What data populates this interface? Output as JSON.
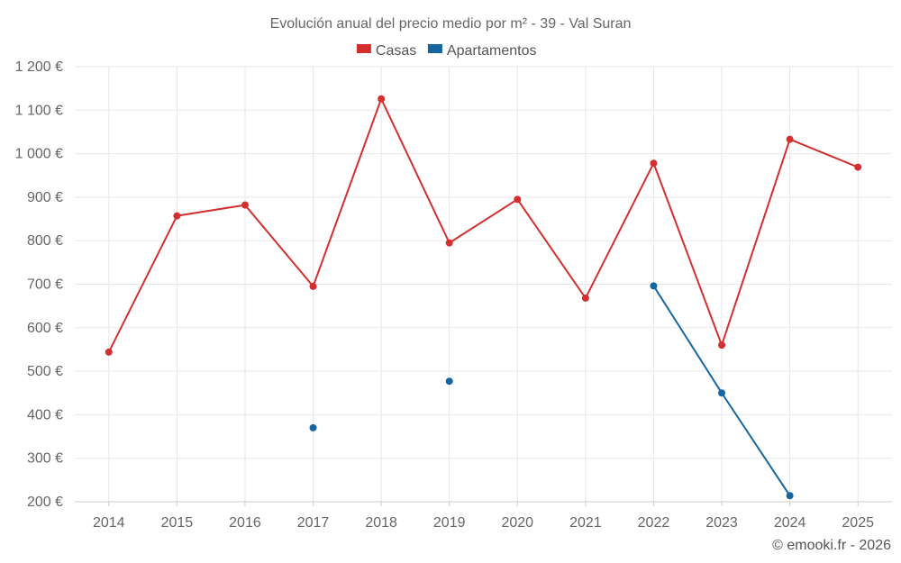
{
  "chart_data": {
    "type": "line",
    "title": "Evolución anual del precio medio por m² - 39 - Val Suran",
    "categories": [
      "2014",
      "2015",
      "2016",
      "2017",
      "2018",
      "2019",
      "2020",
      "2021",
      "2022",
      "2023",
      "2024",
      "2025"
    ],
    "series": [
      {
        "name": "Casas",
        "color": "#d32f2f",
        "values": [
          544,
          857,
          882,
          695,
          1126,
          795,
          895,
          668,
          978,
          560,
          1033,
          969
        ]
      },
      {
        "name": "Apartamentos",
        "color": "#1565a0",
        "values": [
          null,
          null,
          null,
          370,
          null,
          477,
          null,
          null,
          696,
          450,
          214,
          null
        ]
      }
    ],
    "ylim": [
      200,
      1200
    ],
    "yticks": [
      200,
      300,
      400,
      500,
      600,
      700,
      800,
      900,
      1000,
      1100,
      1200
    ],
    "ytick_labels": [
      "200 €",
      "300 €",
      "400 €",
      "500 €",
      "600 €",
      "700 €",
      "800 €",
      "900 €",
      "1 000 €",
      "1 100 €",
      "1 200 €"
    ],
    "legend_position": "top-center",
    "grid": true,
    "xlabel": "",
    "ylabel": ""
  },
  "credit": "© emooki.fr - 2026"
}
